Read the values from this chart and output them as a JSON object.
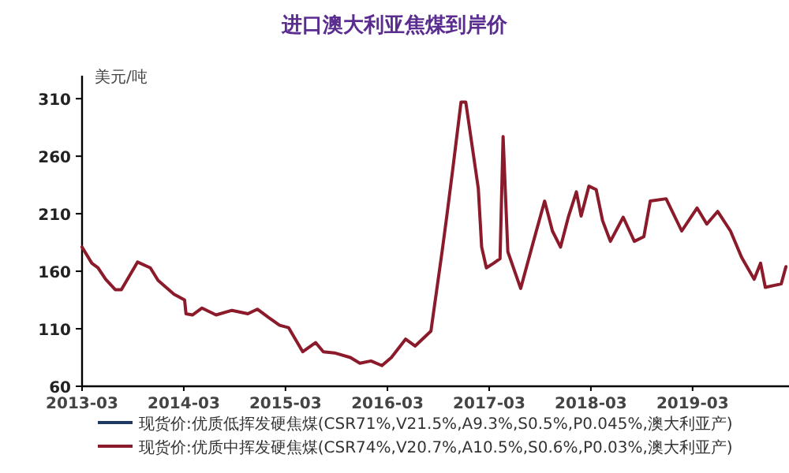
{
  "chart_data": {
    "type": "line",
    "title": "进口澳大利亚焦煤到岸价",
    "ylabel": "美元/吨",
    "x": [
      "2013-03-01",
      "2013-04-05",
      "2013-04-27",
      "2013-05-25",
      "2013-06-28",
      "2013-07-20",
      "2013-09-16",
      "2013-11-01",
      "2013-11-29",
      "2014-01-25",
      "2014-03-04",
      "2014-03-09",
      "2014-04-01",
      "2014-05-05",
      "2014-06-25",
      "2014-08-21",
      "2014-10-17",
      "2014-11-20",
      "2014-12-29",
      "2015-02-08",
      "2015-03-12",
      "2015-05-02",
      "2015-06-17",
      "2015-07-15",
      "2015-08-24",
      "2015-10-20",
      "2015-11-23",
      "2016-01-02",
      "2016-02-10",
      "2016-03-15",
      "2016-05-05",
      "2016-06-08",
      "2016-08-04",
      "2016-09-13",
      "2016-09-30",
      "2016-10-22",
      "2016-11-20",
      "2016-12-07",
      "2017-01-21",
      "2017-02-02",
      "2017-02-19",
      "2017-03-17",
      "2017-04-09",
      "2017-04-20",
      "2017-05-07",
      "2017-06-22",
      "2017-08-07",
      "2017-09-16",
      "2017-10-14",
      "2017-11-12",
      "2017-12-10",
      "2018-01-08",
      "2018-01-25",
      "2018-02-22",
      "2018-03-20",
      "2018-04-12",
      "2018-05-10",
      "2018-06-25",
      "2018-08-04",
      "2018-09-07",
      "2018-09-30",
      "2018-11-26",
      "2019-01-21",
      "2019-03-17",
      "2019-04-21",
      "2019-05-30",
      "2019-07-15",
      "2019-08-24",
      "2019-10-08",
      "2019-10-31",
      "2019-11-17",
      "2020-01-13",
      "2020-01-30"
    ],
    "series": [
      {
        "name": "现货价:优质低挥发硬焦煤(CSR71%,V21.5%,A9.3%,S0.5%,P0.045%,澳大利亚产)",
        "color": "#1f3864",
        "values": [
          null,
          null,
          null,
          null,
          null,
          null,
          null,
          null,
          null,
          null,
          null,
          null,
          null,
          null,
          null,
          null,
          null,
          null,
          null,
          null,
          null,
          null,
          null,
          null,
          null,
          null,
          null,
          null,
          null,
          null,
          null,
          null,
          null,
          null,
          null,
          null,
          null,
          null,
          null,
          null,
          null,
          null,
          null,
          null,
          null,
          null,
          null,
          null,
          null,
          null,
          null,
          null,
          null,
          null,
          null,
          null,
          null,
          null,
          null,
          null,
          null,
          null,
          null,
          null,
          null,
          null,
          null,
          null,
          null,
          null,
          null,
          null,
          null
        ]
      },
      {
        "name": "现货价:优质中挥发硬焦煤(CSR74%,V20.7%,A10.5%,S0.6%,P0.03%,澳大利亚产)",
        "color": "#8b1a2a",
        "values": [
          181,
          167,
          163,
          153,
          144,
          144,
          168,
          163,
          152,
          140,
          135,
          123,
          122,
          128,
          122,
          126,
          123,
          127,
          120,
          113,
          111,
          90,
          98,
          90,
          89,
          85,
          80,
          82,
          78,
          85,
          101,
          95,
          108,
          177,
          208,
          250,
          307,
          307,
          232,
          181,
          163,
          167,
          171,
          277,
          177,
          145,
          186,
          221,
          195,
          181,
          207,
          229,
          208,
          234,
          231,
          204,
          186,
          207,
          186,
          190,
          221,
          223,
          195,
          215,
          201,
          212,
          195,
          172,
          153,
          167,
          146,
          149,
          164
        ]
      }
    ],
    "xlim": [
      "2013-03-01",
      "2020-02-10"
    ],
    "xticks": [
      "2013-03",
      "2014-03",
      "2015-03",
      "2016-03",
      "2017-03",
      "2018-03",
      "2019-03"
    ],
    "ylim": [
      60,
      330
    ],
    "yticks": [
      60,
      110,
      160,
      210,
      260,
      310
    ],
    "legend": "bottom"
  }
}
